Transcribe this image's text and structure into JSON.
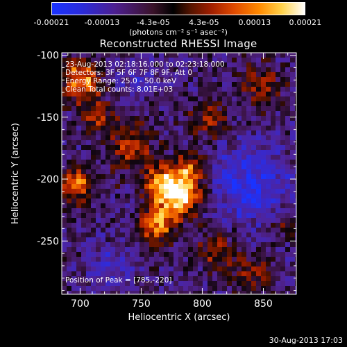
{
  "colorbar": {
    "ticks": [
      "-0.00021",
      "-0.00013",
      "-4.3e-05",
      "4.3e-05",
      "0.00013",
      "0.00021"
    ],
    "units": "(photons cm⁻² s⁻¹ asec⁻²)"
  },
  "timestamp": "30-Aug-2013 17:03",
  "chart_data": {
    "type": "heatmap",
    "title": "Reconstructed RHESSI Image",
    "xlabel": "Heliocentric X (arcsec)",
    "ylabel": "Heliocentric Y (arcsec)",
    "xlim": [
      685,
      877
    ],
    "ylim": [
      -293,
      -98
    ],
    "x_ticks": [
      700,
      750,
      800,
      850
    ],
    "y_ticks": [
      -100,
      -150,
      -200,
      -250
    ],
    "color_range": [
      -0.00021,
      0.00021
    ],
    "grid": false,
    "annotations": [
      "23-Aug-2013 02:18:16.000 to 02:23:18.000",
      "Detectors: 3F 5F 6F 7F 8F 9F, Att 0",
      "Energy Range: 25.0 - 50.0 keV",
      "Clean     Total counts: 8.01E+03"
    ],
    "peak_label": "Position of Peak = [785,-220]",
    "peak": [
      785,
      -220
    ],
    "hotspots": [
      {
        "x": 782,
        "y": -213,
        "sigma": 13,
        "amp": 1.0
      },
      {
        "x": 768,
        "y": -205,
        "sigma": 11,
        "amp": 0.75
      },
      {
        "x": 763,
        "y": -238,
        "sigma": 10,
        "amp": 0.75
      },
      {
        "x": 742,
        "y": -175,
        "sigma": 13,
        "amp": 0.55
      },
      {
        "x": 700,
        "y": -120,
        "sigma": 11,
        "amp": 0.9
      },
      {
        "x": 698,
        "y": -205,
        "sigma": 10,
        "amp": 0.75
      },
      {
        "x": 715,
        "y": -150,
        "sigma": 10,
        "amp": 0.55
      },
      {
        "x": 806,
        "y": -152,
        "sigma": 10,
        "amp": 0.5
      },
      {
        "x": 848,
        "y": -125,
        "sigma": 12,
        "amp": 0.45
      },
      {
        "x": 812,
        "y": -258,
        "sigma": 11,
        "amp": 0.45
      },
      {
        "x": 842,
        "y": -278,
        "sigma": 11,
        "amp": 0.45
      },
      {
        "x": 866,
        "y": -238,
        "sigma": 8,
        "amp": 0.35
      },
      {
        "x": 790,
        "y": -190,
        "sigma": 9,
        "amp": 0.55
      }
    ],
    "coldspots": [
      {
        "x": 840,
        "y": -205,
        "sigma": 22,
        "amp": 0.55
      },
      {
        "x": 725,
        "y": -270,
        "sigma": 12,
        "amp": 0.35
      },
      {
        "x": 745,
        "y": -120,
        "sigma": 10,
        "amp": 0.3
      }
    ]
  }
}
